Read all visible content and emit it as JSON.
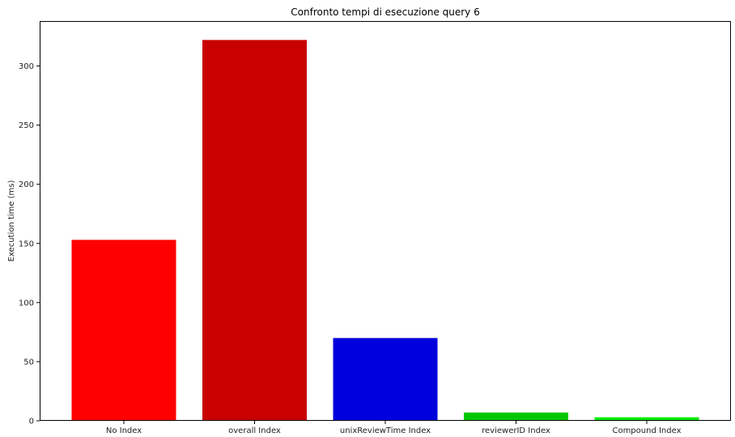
{
  "chart_data": {
    "type": "bar",
    "title": "Confronto tempi di esecuzione query 6",
    "xlabel": "",
    "ylabel": "Execution time (ms)",
    "categories": [
      "No Index",
      "overall Index",
      "unixReviewTime Index",
      "reviewerID Index",
      "Compound Index"
    ],
    "values": [
      153,
      322,
      70,
      7,
      3
    ],
    "colors": [
      "#ff0000",
      "#c80000",
      "#0000dc",
      "#00c800",
      "#00ee00"
    ],
    "ylim": [
      0,
      338
    ],
    "yticks": [
      0,
      50,
      100,
      150,
      200,
      250,
      300
    ],
    "grid": false,
    "legend": "none"
  }
}
